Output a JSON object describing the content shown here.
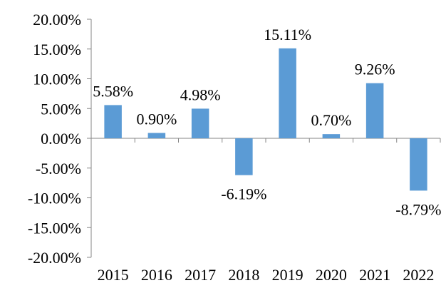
{
  "chart_data": {
    "type": "bar",
    "categories": [
      "2015",
      "2016",
      "2017",
      "2018",
      "2019",
      "2020",
      "2021",
      "2022"
    ],
    "values": [
      5.58,
      0.9,
      4.98,
      -6.19,
      15.11,
      0.7,
      9.26,
      -8.79
    ],
    "data_labels": [
      "5.58%",
      "0.90%",
      "4.98%",
      "-6.19%",
      "15.11%",
      "0.70%",
      "9.26%",
      "-8.79%"
    ],
    "y_ticks": [
      "20.00%",
      "15.00%",
      "10.00%",
      "5.00%",
      "0.00%",
      "-5.00%",
      "-10.00%",
      "-15.00%",
      "-20.00%"
    ],
    "ylim": [
      -20,
      20
    ],
    "ytick_step": 5,
    "grid": false,
    "legend": "none",
    "bar_color": "#5b9bd5"
  }
}
